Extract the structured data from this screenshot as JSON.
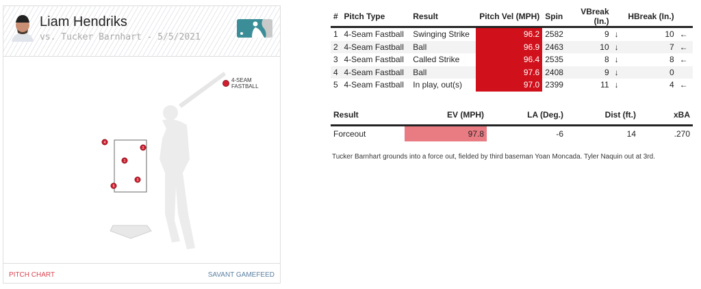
{
  "header": {
    "pitcher": "Liam Hendriks",
    "subtitle": "vs. Tucker Barnhart - 5/5/2021",
    "logo": "mlb-logo"
  },
  "legend": {
    "label": "4-SEAM FASTBALL",
    "color": "#d0202f"
  },
  "pitch_locations": [
    {
      "n": "1"
    },
    {
      "n": "2"
    },
    {
      "n": "3"
    },
    {
      "n": "4"
    },
    {
      "n": "5"
    }
  ],
  "footer": {
    "left": "PITCH CHART",
    "right": "SAVANT GAMEFEED",
    "left_color": "#d9434e",
    "right_color": "#5a7fa0"
  },
  "pitches": {
    "headers": [
      "#",
      "Pitch Type",
      "Result",
      "Pitch Vel (MPH)",
      "Spin",
      "VBreak (In.)",
      "HBreak (In.)"
    ],
    "rows": [
      {
        "n": "1",
        "type": "4-Seam Fastball",
        "result": "Swinging Strike",
        "vel": "96.2",
        "spin": "2582",
        "vb": "9",
        "vb_dir": "↓",
        "hb": "10",
        "hb_dir": "←"
      },
      {
        "n": "2",
        "type": "4-Seam Fastball",
        "result": "Ball",
        "vel": "96.9",
        "spin": "2463",
        "vb": "10",
        "vb_dir": "↓",
        "hb": "7",
        "hb_dir": "←"
      },
      {
        "n": "3",
        "type": "4-Seam Fastball",
        "result": "Called Strike",
        "vel": "96.4",
        "spin": "2535",
        "vb": "8",
        "vb_dir": "↓",
        "hb": "8",
        "hb_dir": "←"
      },
      {
        "n": "4",
        "type": "4-Seam Fastball",
        "result": "Ball",
        "vel": "97.6",
        "spin": "2408",
        "vb": "9",
        "vb_dir": "↓",
        "hb": "0",
        "hb_dir": ""
      },
      {
        "n": "5",
        "type": "4-Seam Fastball",
        "result": "In play, out(s)",
        "vel": "97.0",
        "spin": "2399",
        "vb": "11",
        "vb_dir": "↓",
        "hb": "4",
        "hb_dir": "←"
      }
    ]
  },
  "batted_ball": {
    "headers": [
      "Result",
      "EV (MPH)",
      "LA (Deg.)",
      "Dist (ft.)",
      "xBA"
    ],
    "row": {
      "result": "Forceout",
      "ev": "97.8",
      "la": "-6",
      "dist": "14",
      "xba": ".270"
    }
  },
  "description": "Tucker Barnhart grounds into a force out, fielded by third baseman Yoan Moncada. Tyler Naquin out at 3rd."
}
